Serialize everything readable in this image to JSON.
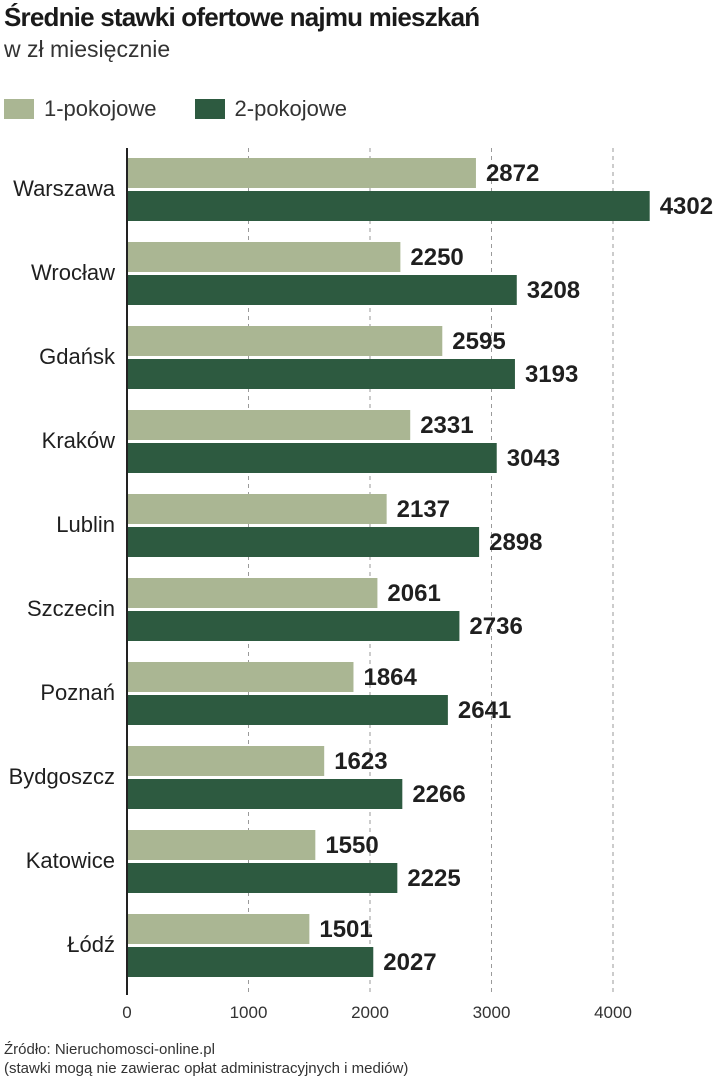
{
  "chart_data": {
    "type": "bar",
    "orientation": "horizontal",
    "title": "Średnie stawki ofertowe najmu mieszkań",
    "subtitle": "w zł miesięcznie",
    "categories": [
      "Warszawa",
      "Wrocław",
      "Gdańsk",
      "Kraków",
      "Lublin",
      "Szczecin",
      "Poznań",
      "Bydgoszcz",
      "Katowice",
      "Łódź"
    ],
    "series": [
      {
        "name": "1-pokojowe",
        "color": "#aab693",
        "values": [
          2872,
          2250,
          2595,
          2331,
          2137,
          2061,
          1864,
          1623,
          1550,
          1501
        ]
      },
      {
        "name": "2-pokojowe",
        "color": "#2d5a40",
        "values": [
          4302,
          3208,
          3193,
          3043,
          2898,
          2736,
          2641,
          2266,
          2225,
          2027
        ]
      }
    ],
    "xlim": [
      0,
      4500
    ],
    "ticks": [
      0,
      1000,
      2000,
      3000,
      4000
    ],
    "grid": true,
    "legend": "top-left"
  },
  "footer": {
    "source": "Źródło: Nieruchomosci-online.pl",
    "note": "(stawki mogą nie zawierac opłat administracyjnych i mediów)"
  }
}
